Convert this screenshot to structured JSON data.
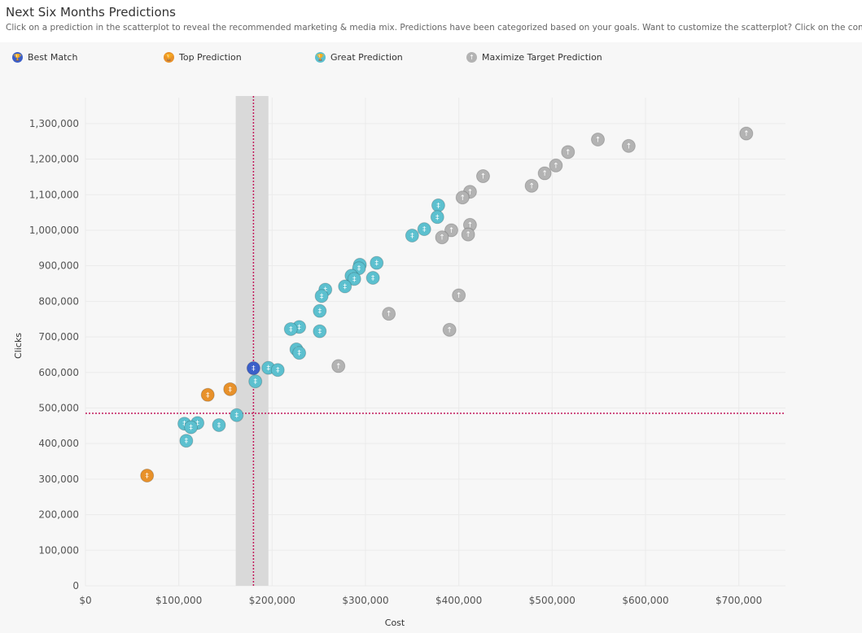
{
  "header": {
    "title": "Next Six Months Predictions",
    "subtitle": "Click on a prediction in the scatterplot to reveal the recommended marketing & media mix. Predictions have been categorized based on your goals. Want to customize the scatterplot? Click on the configuration bu"
  },
  "legend": [
    {
      "key": "best",
      "label": "Best Match"
    },
    {
      "key": "top",
      "label": "Top Prediction"
    },
    {
      "key": "great",
      "label": "Great Prediction"
    },
    {
      "key": "max",
      "label": "Maximize Target Prediction"
    }
  ],
  "colors": {
    "best": "#3b5fc9",
    "top": "#e8912a",
    "great": "#5cc0cf",
    "max": "#b3b3b3",
    "reference_line": "#c2185b",
    "band": "#d9d9d9",
    "grid": "#ebebeb"
  },
  "icons": {
    "best": "trophy-icon",
    "top": "trophy-icon",
    "great": "trophy-icon",
    "max": "arrow-up-icon"
  },
  "chart_data": {
    "type": "scatter",
    "xlabel": "Cost",
    "ylabel": "Clicks",
    "xlim": [
      0,
      750000
    ],
    "ylim": [
      0,
      1350000
    ],
    "x_ticks": [
      0,
      100000,
      200000,
      300000,
      400000,
      500000,
      600000,
      700000
    ],
    "x_tick_labels": [
      "$0",
      "$100,000",
      "$200,000",
      "$300,000",
      "$400,000",
      "$500,000",
      "$600,000",
      "$700,000"
    ],
    "y_ticks": [
      0,
      100000,
      200000,
      300000,
      400000,
      500000,
      600000,
      700000,
      800000,
      900000,
      1000000,
      1100000,
      1200000,
      1300000
    ],
    "y_tick_labels": [
      "0",
      "100,000",
      "200,000",
      "300,000",
      "400,000",
      "500,000",
      "600,000",
      "700,000",
      "800,000",
      "900,000",
      "1,000,000",
      "1,100,000",
      "1,200,000",
      "1,300,000"
    ],
    "grid": true,
    "legend_position": "top",
    "reference_lines": {
      "x": 180000,
      "y": 485000
    },
    "band": {
      "x_from": 161000,
      "x_to": 196000
    },
    "points": [
      {
        "cat": "max",
        "x": 708000,
        "y": 1272000
      },
      {
        "cat": "max",
        "x": 549000,
        "y": 1255000
      },
      {
        "cat": "max",
        "x": 582000,
        "y": 1237000
      },
      {
        "cat": "max",
        "x": 517000,
        "y": 1220000
      },
      {
        "cat": "max",
        "x": 504000,
        "y": 1182000
      },
      {
        "cat": "max",
        "x": 492000,
        "y": 1160000
      },
      {
        "cat": "max",
        "x": 426000,
        "y": 1152000
      },
      {
        "cat": "max",
        "x": 478000,
        "y": 1125000
      },
      {
        "cat": "max",
        "x": 412000,
        "y": 1108000
      },
      {
        "cat": "max",
        "x": 404000,
        "y": 1092000
      },
      {
        "cat": "max",
        "x": 412000,
        "y": 1015000
      },
      {
        "cat": "max",
        "x": 392000,
        "y": 1000000
      },
      {
        "cat": "max",
        "x": 410000,
        "y": 988000
      },
      {
        "cat": "max",
        "x": 382000,
        "y": 980000
      },
      {
        "cat": "max",
        "x": 400000,
        "y": 817000
      },
      {
        "cat": "max",
        "x": 325000,
        "y": 765000
      },
      {
        "cat": "max",
        "x": 390000,
        "y": 720000
      },
      {
        "cat": "max",
        "x": 271000,
        "y": 618000
      },
      {
        "cat": "great",
        "x": 378000,
        "y": 1070000
      },
      {
        "cat": "great",
        "x": 377000,
        "y": 1037000
      },
      {
        "cat": "great",
        "x": 363000,
        "y": 1003000
      },
      {
        "cat": "great",
        "x": 350000,
        "y": 985000
      },
      {
        "cat": "great",
        "x": 312000,
        "y": 908000
      },
      {
        "cat": "great",
        "x": 294000,
        "y": 903000
      },
      {
        "cat": "great",
        "x": 293000,
        "y": 893000
      },
      {
        "cat": "great",
        "x": 285000,
        "y": 872000
      },
      {
        "cat": "great",
        "x": 308000,
        "y": 866000
      },
      {
        "cat": "great",
        "x": 288000,
        "y": 863000
      },
      {
        "cat": "great",
        "x": 278000,
        "y": 842000
      },
      {
        "cat": "great",
        "x": 257000,
        "y": 833000
      },
      {
        "cat": "great",
        "x": 253000,
        "y": 815000
      },
      {
        "cat": "great",
        "x": 251000,
        "y": 773000
      },
      {
        "cat": "great",
        "x": 229000,
        "y": 728000
      },
      {
        "cat": "great",
        "x": 220000,
        "y": 722000
      },
      {
        "cat": "great",
        "x": 251000,
        "y": 716000
      },
      {
        "cat": "great",
        "x": 226000,
        "y": 665000
      },
      {
        "cat": "great",
        "x": 229000,
        "y": 655000
      },
      {
        "cat": "great",
        "x": 196000,
        "y": 613000
      },
      {
        "cat": "great",
        "x": 206000,
        "y": 607000
      },
      {
        "cat": "great",
        "x": 182000,
        "y": 575000
      },
      {
        "cat": "great",
        "x": 162000,
        "y": 480000
      },
      {
        "cat": "great",
        "x": 120000,
        "y": 458000
      },
      {
        "cat": "great",
        "x": 106000,
        "y": 456000
      },
      {
        "cat": "great",
        "x": 113000,
        "y": 446000
      },
      {
        "cat": "great",
        "x": 143000,
        "y": 452000
      },
      {
        "cat": "great",
        "x": 108000,
        "y": 408000
      },
      {
        "cat": "top",
        "x": 155000,
        "y": 553000
      },
      {
        "cat": "top",
        "x": 131000,
        "y": 537000
      },
      {
        "cat": "top",
        "x": 66000,
        "y": 310000
      },
      {
        "cat": "best",
        "x": 180000,
        "y": 612000
      }
    ]
  }
}
